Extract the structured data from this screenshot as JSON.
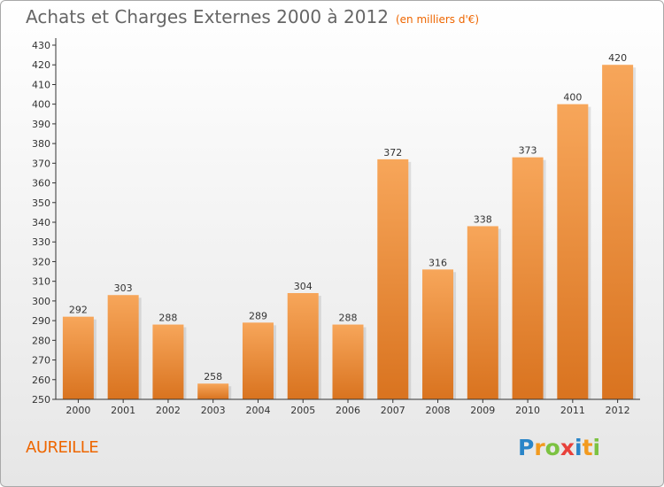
{
  "title": "Achats et Charges Externes 2000 à 2012",
  "subtitle": "(en milliers d'€)",
  "town": "AUREILLE",
  "brand": {
    "letters": [
      "P",
      "r",
      "o",
      "x",
      "i",
      "t",
      "i"
    ],
    "colors": [
      "#2a85c8",
      "#f29a1f",
      "#7cc241",
      "#e8413b",
      "#2a85c8",
      "#f29a1f",
      "#7cc241"
    ]
  },
  "chart_data": {
    "type": "bar",
    "categories": [
      "2000",
      "2001",
      "2002",
      "2003",
      "2004",
      "2005",
      "2006",
      "2007",
      "2008",
      "2009",
      "2010",
      "2011",
      "2012"
    ],
    "values": [
      292,
      303,
      288,
      258,
      289,
      304,
      288,
      372,
      316,
      338,
      373,
      400,
      420
    ],
    "title": "Achats et Charges Externes 2000 à 2012",
    "subtitle": "(en milliers d'€)",
    "xlabel": "",
    "ylabel": "",
    "ylim": [
      250,
      430
    ],
    "ytick_step": 10,
    "grid": false,
    "legend": "none",
    "colors": {
      "bar_light": "#f7a65a",
      "bar_dark": "#d9731f",
      "axis": "#333333"
    }
  }
}
